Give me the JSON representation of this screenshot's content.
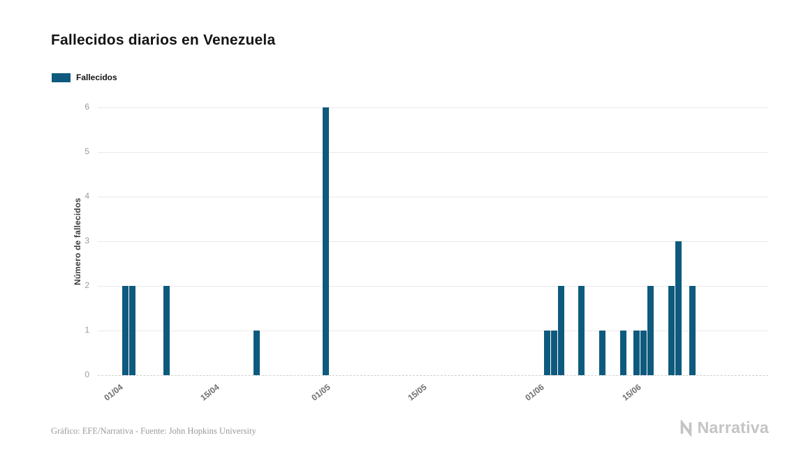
{
  "page": {
    "title": "Fallecidos diarios en Venezuela",
    "footer": "Gráfico: EFE/Narrativa - Fuente: John Hopkins University",
    "brand": "Narrativa"
  },
  "legend": {
    "label": "Fallecidos",
    "color": "#0e5a7e"
  },
  "chart_data": {
    "type": "bar",
    "title": "Fallecidos diarios en Venezuela",
    "xlabel": "",
    "ylabel": "Número de fallecidos",
    "ylim": [
      0,
      6
    ],
    "yticks": [
      0,
      1,
      2,
      3,
      4,
      5,
      6
    ],
    "grid": "horizontal",
    "legend_position": "top-left",
    "bar_color": "#0e5a7e",
    "x_domain_days": [
      -3,
      94
    ],
    "xticks": [
      {
        "label": "01/04",
        "day": 0
      },
      {
        "label": "15/04",
        "day": 14
      },
      {
        "label": "01/05",
        "day": 30
      },
      {
        "label": "15/05",
        "day": 44
      },
      {
        "label": "01/06",
        "day": 61
      },
      {
        "label": "15/06",
        "day": 75
      }
    ],
    "series": [
      {
        "name": "Fallecidos",
        "points": [
          {
            "date": "02/04",
            "day": 1,
            "value": 2
          },
          {
            "date": "03/04",
            "day": 2,
            "value": 2
          },
          {
            "date": "08/04",
            "day": 7,
            "value": 2
          },
          {
            "date": "21/04",
            "day": 20,
            "value": 1
          },
          {
            "date": "01/05",
            "day": 30,
            "value": 6
          },
          {
            "date": "02/06",
            "day": 62,
            "value": 1
          },
          {
            "date": "03/06",
            "day": 63,
            "value": 1
          },
          {
            "date": "04/06",
            "day": 64,
            "value": 2
          },
          {
            "date": "07/06",
            "day": 67,
            "value": 2
          },
          {
            "date": "10/06",
            "day": 70,
            "value": 1
          },
          {
            "date": "13/06",
            "day": 73,
            "value": 1
          },
          {
            "date": "15/06",
            "day": 75,
            "value": 1
          },
          {
            "date": "16/06",
            "day": 76,
            "value": 1
          },
          {
            "date": "17/06",
            "day": 77,
            "value": 2
          },
          {
            "date": "20/06",
            "day": 80,
            "value": 2
          },
          {
            "date": "21/06",
            "day": 81,
            "value": 3
          },
          {
            "date": "23/06",
            "day": 83,
            "value": 2
          }
        ]
      }
    ]
  }
}
